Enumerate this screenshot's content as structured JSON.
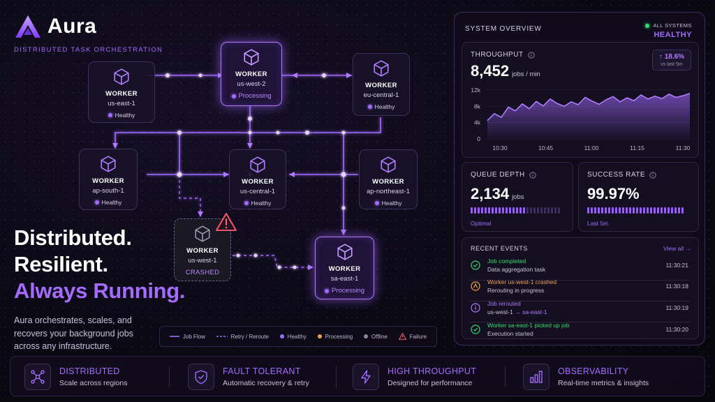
{
  "brand": {
    "name": "Aura",
    "subtitle": "DISTRIBUTED TASK ORCHESTRATION"
  },
  "hero": {
    "line1": "Distributed.",
    "line2": "Resilient.",
    "line3": "Always Running.",
    "description": "Aura orchestrates, scales, and recovers your background jobs across any infrastructure."
  },
  "nodes": [
    {
      "id": "us-east-1",
      "title": "WORKER",
      "region": "us-east-1",
      "status": "Healthy",
      "state": "healthy"
    },
    {
      "id": "us-west-2",
      "title": "WORKER",
      "region": "us-west-2",
      "status": "Processing",
      "state": "processing"
    },
    {
      "id": "eu-central-1",
      "title": "WORKER",
      "region": "eu-central-1",
      "status": "Healthy",
      "state": "healthy"
    },
    {
      "id": "ap-south-1",
      "title": "WORKER",
      "region": "ap-south-1",
      "status": "Healthy",
      "state": "healthy"
    },
    {
      "id": "us-central-1",
      "title": "WORKER",
      "region": "us-central-1",
      "status": "Healthy",
      "state": "healthy"
    },
    {
      "id": "ap-northeast-1",
      "title": "WORKER",
      "region": "ap-northeast-1",
      "status": "Healthy",
      "state": "healthy"
    },
    {
      "id": "us-west-1",
      "title": "WORKER",
      "region": "us-west-1",
      "status": "CRASHED",
      "state": "crashed"
    },
    {
      "id": "sa-east-1",
      "title": "WORKER",
      "region": "sa-east-1",
      "status": "Processing",
      "state": "processing"
    }
  ],
  "legend": {
    "job_flow": "Job Flow",
    "retry": "Retry / Reroute",
    "healthy": "Healthy",
    "processing": "Processing",
    "offline": "Offline",
    "failure": "Failure"
  },
  "colors": {
    "accent": "#a46bff",
    "healthy": "#a46bff",
    "processing": "#f5a24b",
    "offline": "#8a8598",
    "failure": "#ff5c7a",
    "system_ok": "#2ee06a"
  },
  "overview": {
    "title": "SYSTEM OVERVIEW",
    "status_label": "ALL SYSTEMS",
    "status_value": "HEALTHY"
  },
  "throughput": {
    "label": "THROUGHPUT",
    "value": "8,452",
    "unit": "jobs / min",
    "delta": "18.6%",
    "delta_sub": "vs last 5m"
  },
  "chart_data": {
    "type": "area",
    "title": "",
    "xlabel": "",
    "ylabel": "",
    "x_ticks": [
      "10:30",
      "10:45",
      "11:00",
      "11:15",
      "11:30"
    ],
    "y_ticks": [
      "0",
      "4k",
      "8k",
      "12k"
    ],
    "ylim": [
      0,
      12000
    ],
    "grid": true,
    "series": [
      {
        "values": [
          4500,
          6200,
          5300,
          7800,
          6900,
          8600,
          7400,
          9200,
          8100,
          9800,
          8700,
          8000,
          9100,
          8400,
          10200,
          9300,
          8500,
          9600,
          10400,
          9100,
          10100,
          9400,
          10800,
          9800,
          10500,
          9900,
          11000,
          10200,
          10600,
          11200
        ]
      }
    ]
  },
  "queue": {
    "label": "QUEUE DEPTH",
    "value": "2,134",
    "unit": "jobs",
    "note": "Optimal",
    "fill_fraction": 0.6
  },
  "success": {
    "label": "SUCCESS RATE",
    "value": "99.97%",
    "note": "Last 5m",
    "fill_fraction": 0.9997
  },
  "events": {
    "title": "RECENT EVENTS",
    "view_all": "View all →",
    "items": [
      {
        "icon": "check-circle-icon",
        "title": "Job completed",
        "sub": "Data aggregation task",
        "time": "11:30:21",
        "color": "#2ee06a"
      },
      {
        "icon": "alert-circle-icon",
        "title": "Worker us-west-1 crashed",
        "sub": "Rerouting in progress",
        "time": "11:30:18",
        "color": "#f5a24b"
      },
      {
        "icon": "info-circle-icon",
        "title": "Job rerouted",
        "sub_from": "us-west-1",
        "sub_arrow": "→",
        "sub_to": "sa-east-1",
        "time": "11:30:19",
        "color": "#b07cff"
      },
      {
        "icon": "check-circle-icon",
        "title": "Worker sa-east-1 picked up job",
        "sub": "Execution started",
        "time": "11:30:20",
        "color": "#2ee06a"
      }
    ]
  },
  "features": [
    {
      "icon": "network-icon",
      "title": "DISTRIBUTED",
      "sub": "Scale across regions"
    },
    {
      "icon": "shield-check-icon",
      "title": "FAULT TOLERANT",
      "sub": "Automatic recovery & retry"
    },
    {
      "icon": "lightning-icon",
      "title": "HIGH THROUGHPUT",
      "sub": "Designed for performance"
    },
    {
      "icon": "bar-chart-icon",
      "title": "OBSERVABILITY",
      "sub": "Real-time metrics & insights"
    }
  ]
}
